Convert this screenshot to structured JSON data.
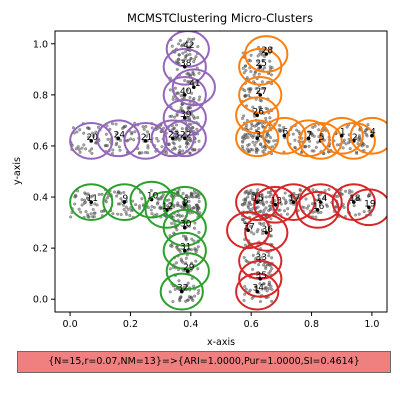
{
  "chart_data": {
    "type": "scatter",
    "title": "MCMSTClustering Micro-Clusters",
    "xlabel": "x-axis",
    "ylabel": "y-axis",
    "xlim": [
      -0.05,
      1.05
    ],
    "ylim": [
      -0.05,
      1.05
    ],
    "x_ticks": [
      0.0,
      0.2,
      0.4,
      0.6,
      0.8,
      1.0
    ],
    "y_ticks": [
      0.0,
      0.2,
      0.4,
      0.6,
      0.8,
      1.0
    ],
    "x_tick_labels": [
      "0.0",
      "0.2",
      "0.4",
      "0.6",
      "0.8",
      "1.0"
    ],
    "y_tick_labels": [
      "0.0",
      "0.2",
      "0.4",
      "0.6",
      "0.8",
      "1.0"
    ],
    "grid": false,
    "point_color": "#555555",
    "cluster_colors": {
      "purple": "#9467bd",
      "orange": "#ff7f0e",
      "green": "#2ca02c",
      "red": "#d62728"
    },
    "micro_cluster_radius": 0.07,
    "micro_clusters": [
      {
        "id": "42",
        "x": 0.39,
        "y": 0.98,
        "color": "purple"
      },
      {
        "id": "38",
        "x": 0.38,
        "y": 0.91,
        "color": "purple"
      },
      {
        "id": "41",
        "x": 0.41,
        "y": 0.83,
        "color": "purple"
      },
      {
        "id": "40",
        "x": 0.38,
        "y": 0.8,
        "color": "purple"
      },
      {
        "id": "39",
        "x": 0.38,
        "y": 0.71,
        "color": "purple"
      },
      {
        "id": "22",
        "x": 0.38,
        "y": 0.63,
        "color": "purple"
      },
      {
        "id": "23",
        "x": 0.34,
        "y": 0.63,
        "color": "purple"
      },
      {
        "id": "21",
        "x": 0.25,
        "y": 0.62,
        "color": "purple"
      },
      {
        "id": "24",
        "x": 0.16,
        "y": 0.63,
        "color": "purple"
      },
      {
        "id": "20",
        "x": 0.07,
        "y": 0.62,
        "color": "purple"
      },
      {
        "id": "28",
        "x": 0.65,
        "y": 0.96,
        "color": "orange"
      },
      {
        "id": "25",
        "x": 0.63,
        "y": 0.91,
        "color": "orange"
      },
      {
        "id": "27",
        "x": 0.63,
        "y": 0.8,
        "color": "orange"
      },
      {
        "id": "26",
        "x": 0.62,
        "y": 0.72,
        "color": "orange"
      },
      {
        "id": "3",
        "x": 0.62,
        "y": 0.63,
        "color": "orange"
      },
      {
        "id": "6",
        "x": 0.71,
        "y": 0.64,
        "color": "orange"
      },
      {
        "id": "7",
        "x": 0.79,
        "y": 0.63,
        "color": "orange"
      },
      {
        "id": "5",
        "x": 0.83,
        "y": 0.62,
        "color": "orange"
      },
      {
        "id": "1",
        "x": 0.9,
        "y": 0.64,
        "color": "orange"
      },
      {
        "id": "2",
        "x": 0.94,
        "y": 0.62,
        "color": "orange"
      },
      {
        "id": "4",
        "x": 1.0,
        "y": 0.64,
        "color": "orange"
      },
      {
        "id": "11",
        "x": 0.07,
        "y": 0.38,
        "color": "green"
      },
      {
        "id": "9",
        "x": 0.18,
        "y": 0.38,
        "color": "green"
      },
      {
        "id": "10",
        "x": 0.27,
        "y": 0.39,
        "color": "green"
      },
      {
        "id": "12",
        "x": 0.32,
        "y": 0.35,
        "color": "green"
      },
      {
        "id": "8",
        "x": 0.38,
        "y": 0.37,
        "color": "green"
      },
      {
        "id": "30",
        "x": 0.38,
        "y": 0.28,
        "color": "green"
      },
      {
        "id": "31",
        "x": 0.38,
        "y": 0.19,
        "color": "green"
      },
      {
        "id": "29",
        "x": 0.39,
        "y": 0.11,
        "color": "green"
      },
      {
        "id": "32",
        "x": 0.37,
        "y": 0.03,
        "color": "green"
      },
      {
        "id": "15",
        "x": 0.62,
        "y": 0.38,
        "color": "red"
      },
      {
        "id": "13",
        "x": 0.68,
        "y": 0.37,
        "color": "red"
      },
      {
        "id": "17",
        "x": 0.74,
        "y": 0.38,
        "color": "red"
      },
      {
        "id": "14",
        "x": 0.83,
        "y": 0.38,
        "color": "red"
      },
      {
        "id": "16",
        "x": 0.82,
        "y": 0.35,
        "color": "red"
      },
      {
        "id": "18",
        "x": 0.94,
        "y": 0.38,
        "color": "red"
      },
      {
        "id": "19",
        "x": 0.99,
        "y": 0.36,
        "color": "red"
      },
      {
        "id": "37",
        "x": 0.59,
        "y": 0.27,
        "color": "red"
      },
      {
        "id": "36",
        "x": 0.65,
        "y": 0.26,
        "color": "red"
      },
      {
        "id": "33",
        "x": 0.63,
        "y": 0.15,
        "color": "red"
      },
      {
        "id": "35",
        "x": 0.63,
        "y": 0.08,
        "color": "red"
      },
      {
        "id": "34",
        "x": 0.62,
        "y": 0.03,
        "color": "red"
      }
    ],
    "point_regions": [
      {
        "x": [
          0.33,
          0.43
        ],
        "y": [
          0.57,
          1.02
        ],
        "n": 150
      },
      {
        "x": [
          0.0,
          0.43
        ],
        "y": [
          0.57,
          0.69
        ],
        "n": 160
      },
      {
        "x": [
          0.57,
          0.67
        ],
        "y": [
          0.57,
          1.0
        ],
        "n": 150
      },
      {
        "x": [
          0.57,
          1.0
        ],
        "y": [
          0.57,
          0.69
        ],
        "n": 160
      },
      {
        "x": [
          0.0,
          0.43
        ],
        "y": [
          0.32,
          0.43
        ],
        "n": 160
      },
      {
        "x": [
          0.33,
          0.43
        ],
        "y": [
          -0.01,
          0.43
        ],
        "n": 150
      },
      {
        "x": [
          0.57,
          1.0
        ],
        "y": [
          0.32,
          0.43
        ],
        "n": 160
      },
      {
        "x": [
          0.57,
          0.67
        ],
        "y": [
          -0.01,
          0.43
        ],
        "n": 150
      }
    ]
  },
  "result_text": "{N=15,r=0.07,NM=13}=>{ARI=1.0000,Pur=1.0000,SI=0.4614}",
  "result_box_color": "#f08080"
}
